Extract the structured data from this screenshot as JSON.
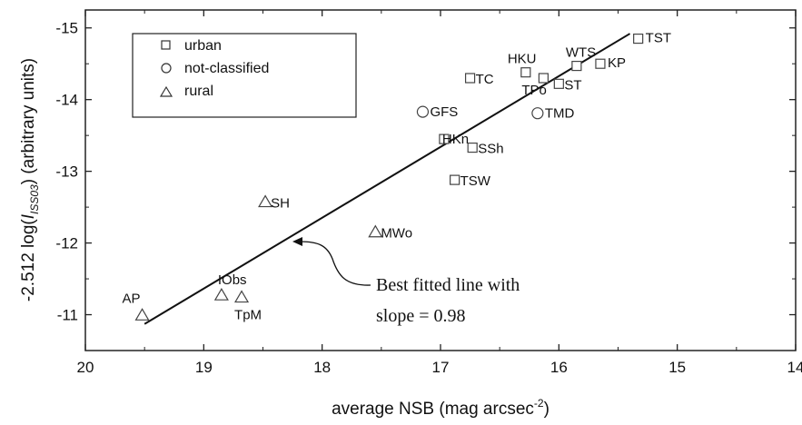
{
  "chart_data": {
    "type": "scatter",
    "xlabel": "average NSB (mag arcsec",
    "xlabel_sup": "-2",
    "xlabel_close": ")",
    "ylabel_prefix": "-2.512 log(",
    "ylabel_italic": "I",
    "ylabel_sub": "ISS03",
    "ylabel_suffix": ") (arbitrary units)",
    "xlim": [
      20,
      14
    ],
    "ylim": [
      -10.5,
      -15.25
    ],
    "x_ticks": [
      20,
      19,
      18,
      17,
      16,
      15,
      14
    ],
    "y_ticks": [
      -11,
      -12,
      -13,
      -14,
      -15
    ],
    "legend": [
      {
        "marker": "square",
        "label": "urban"
      },
      {
        "marker": "circle",
        "label": "not-classified"
      },
      {
        "marker": "triangle",
        "label": "rural"
      }
    ],
    "series": [
      {
        "name": "urban",
        "marker": "square",
        "points": [
          {
            "label": "TST",
            "x": 15.33,
            "y": -14.85
          },
          {
            "label": "KP",
            "x": 15.65,
            "y": -14.5
          },
          {
            "label": "WTS",
            "x": 15.85,
            "y": -14.47
          },
          {
            "label": "HKU",
            "x": 16.28,
            "y": -14.38
          },
          {
            "label": "TPo",
            "x": 16.13,
            "y": -14.3
          },
          {
            "label": "ST",
            "x": 16.0,
            "y": -14.22
          },
          {
            "label": "TC",
            "x": 16.75,
            "y": -14.3
          },
          {
            "label": "HKn",
            "x": 16.97,
            "y": -13.45
          },
          {
            "label": "SSh",
            "x": 16.73,
            "y": -13.33
          },
          {
            "label": "TSW",
            "x": 16.88,
            "y": -12.88
          }
        ]
      },
      {
        "name": "not-classified",
        "marker": "circle",
        "points": [
          {
            "label": "GFS",
            "x": 17.15,
            "y": -13.83
          },
          {
            "label": "TMD",
            "x": 16.18,
            "y": -13.81
          }
        ]
      },
      {
        "name": "rural",
        "marker": "triangle",
        "points": [
          {
            "label": "SH",
            "x": 18.48,
            "y": -12.57
          },
          {
            "label": "MWo",
            "x": 17.55,
            "y": -12.15
          },
          {
            "label": "IObs",
            "x": 18.85,
            "y": -11.27
          },
          {
            "label": "TpM",
            "x": 18.68,
            "y": -11.24
          },
          {
            "label": "AP",
            "x": 19.52,
            "y": -10.99
          }
        ]
      }
    ],
    "fit_line": {
      "x1": 19.5,
      "y1": -10.87,
      "x2": 15.4,
      "y2": -14.92,
      "slope": 0.98
    },
    "annotation_lines": [
      "Best fitted line with",
      "slope = 0.98"
    ]
  }
}
